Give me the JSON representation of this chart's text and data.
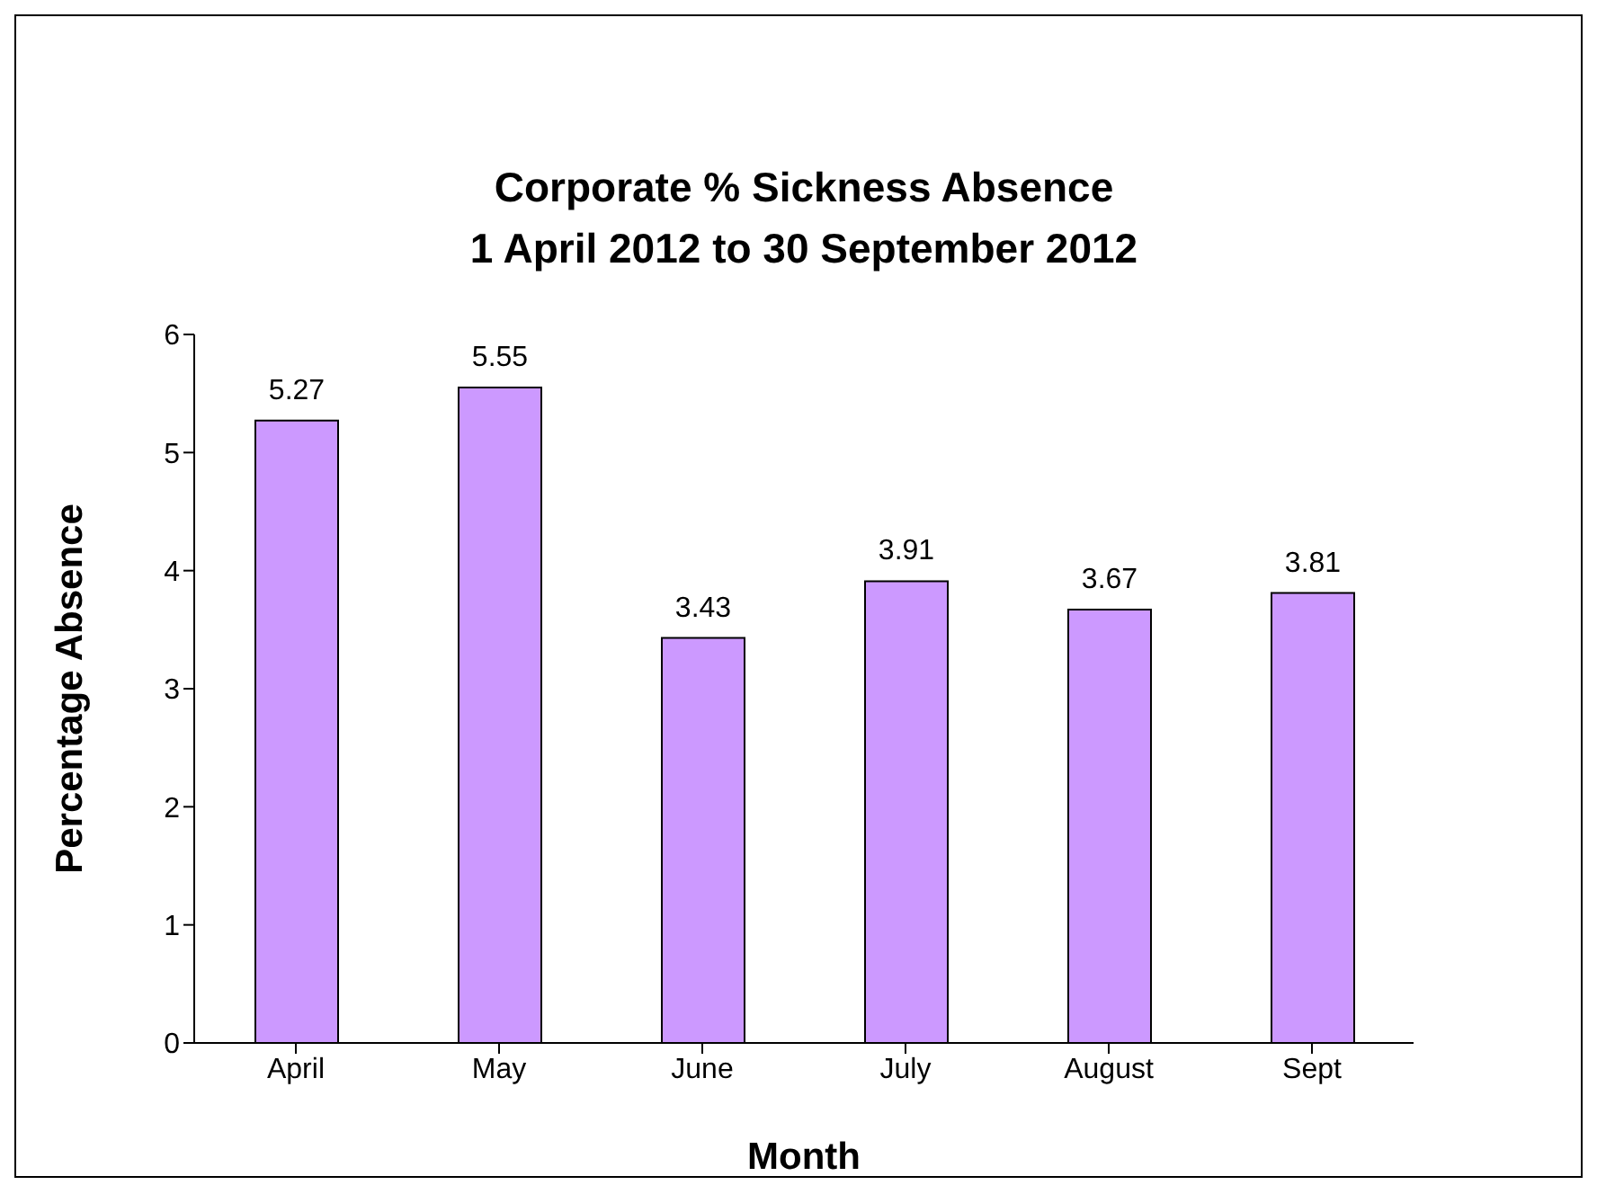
{
  "chart_data": {
    "type": "bar",
    "title": "Corporate % Sickness Absence\n1 April 2012 to 30 September 2012",
    "xlabel": "Month",
    "ylabel": "Percentage Absence",
    "categories": [
      "April",
      "May",
      "June",
      "July",
      "August",
      "Sept"
    ],
    "values": [
      5.27,
      5.55,
      3.43,
      3.91,
      3.67,
      3.81
    ],
    "color": "#cc99ff",
    "ylim": [
      0,
      6
    ],
    "yticks": [
      0,
      1,
      2,
      3,
      4,
      5,
      6
    ],
    "data_labels": true
  }
}
